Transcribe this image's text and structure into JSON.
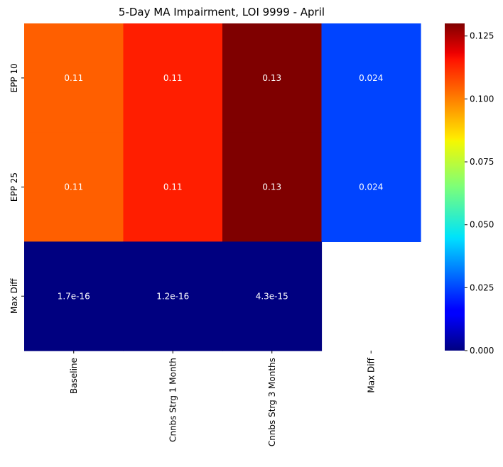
{
  "chart_data": {
    "type": "heatmap",
    "title": "5-Day MA Impairment, LOI 9999 - April",
    "columns": [
      "Baseline",
      "Cnnbs Strg 1 Month",
      "Cnnbs Strg 3 Months",
      "Max Diff"
    ],
    "rows": [
      "EPP 10",
      "EPP 25",
      "Max Diff"
    ],
    "values": [
      [
        0.11,
        0.11,
        0.13,
        0.024
      ],
      [
        0.11,
        0.11,
        0.13,
        0.024
      ],
      [
        1.7e-16,
        1.2e-16,
        4.3e-15,
        null
      ]
    ],
    "cell_colors": [
      [
        "#ff5f00",
        "#ff1e00",
        "#7f0000",
        "#0044ff"
      ],
      [
        "#ff5f00",
        "#ff1e00",
        "#7f0000",
        "#0044ff"
      ],
      [
        "#000080",
        "#000080",
        "#000080",
        null
      ]
    ],
    "annotations": [
      [
        "0.11",
        "0.11",
        "0.13",
        "0.024"
      ],
      [
        "0.11",
        "0.11",
        "0.13",
        "0.024"
      ],
      [
        "1.7e-16",
        "1.2e-16",
        "4.3e-15",
        ""
      ]
    ],
    "colormap": "jet",
    "colorbar": {
      "range": [
        0.0,
        0.13
      ],
      "ticks": [
        0.0,
        0.025,
        0.05,
        0.075,
        0.1,
        0.125
      ],
      "tick_labels": [
        "0.000",
        "0.025",
        "0.050",
        "0.075",
        "0.100",
        "0.125"
      ]
    }
  }
}
